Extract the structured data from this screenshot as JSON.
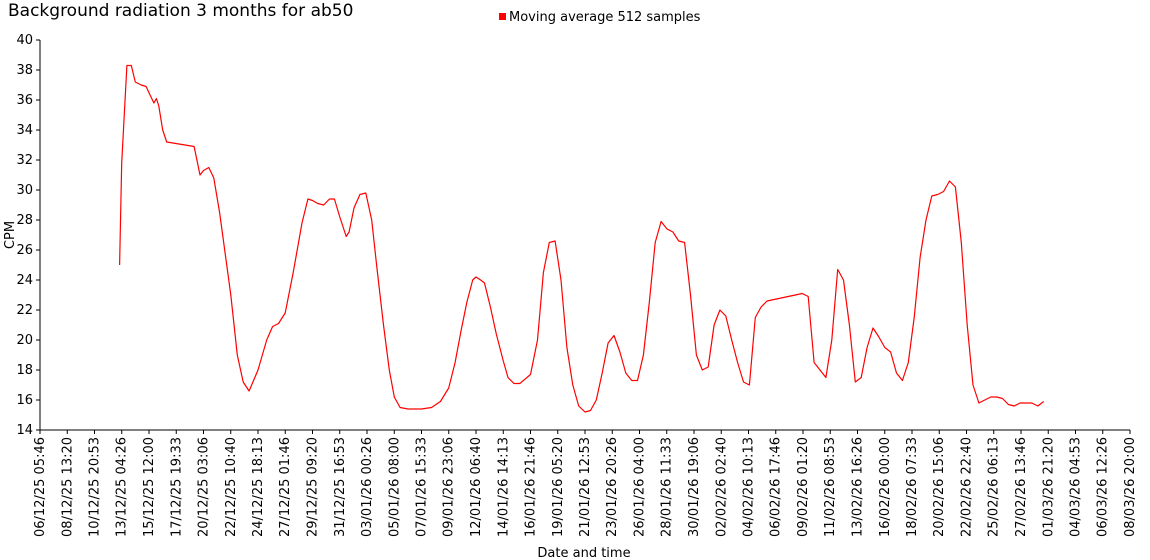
{
  "chart_data": {
    "type": "line",
    "title": "Background radiation 3 months for ab50",
    "xlabel": "Date and time",
    "ylabel": "CPM",
    "ylim": [
      14,
      40
    ],
    "yticks": [
      14,
      16,
      18,
      20,
      22,
      24,
      26,
      28,
      30,
      32,
      34,
      36,
      38,
      40
    ],
    "grid": false,
    "legend_position": "top",
    "x_tick_labels": [
      "06/12/25 05:46",
      "08/12/25 13:20",
      "10/12/25 20:53",
      "13/12/25 04:26",
      "15/12/25 12:00",
      "17/12/25 19:33",
      "20/12/25 03:06",
      "22/12/25 10:40",
      "24/12/25 18:13",
      "27/12/25 01:46",
      "29/12/25 09:20",
      "31/12/25 16:53",
      "03/01/26 00:26",
      "05/01/26 08:00",
      "07/01/26 15:33",
      "09/01/26 23:06",
      "12/01/26 06:40",
      "14/01/26 14:13",
      "16/01/26 21:46",
      "19/01/26 05:20",
      "21/01/26 12:53",
      "23/01/26 20:26",
      "26/01/26 04:00",
      "28/01/26 11:33",
      "30/01/26 19:06",
      "02/02/26 02:40",
      "04/02/26 10:13",
      "06/02/26 17:46",
      "09/02/26 01:20",
      "11/02/26 08:53",
      "13/02/26 16:26",
      "16/02/26 00:00",
      "18/02/26 07:33",
      "20/02/26 15:06",
      "22/02/26 22:40",
      "25/02/26 06:13",
      "27/02/26 13:46",
      "01/03/26 21:20",
      "04/03/26 04:53",
      "06/03/26 12:26",
      "08/03/26 20:00"
    ],
    "series": [
      {
        "name": "Moving average 512 samples",
        "color": "#ff0000",
        "points": [
          [
            "13/12/25 00:00",
            25.0
          ],
          [
            "13/12/25 04:26",
            31.8
          ],
          [
            "13/12/25 15:00",
            38.3
          ],
          [
            "14/12/25 00:00",
            38.3
          ],
          [
            "14/12/25 08:00",
            37.2
          ],
          [
            "14/12/25 20:00",
            37.0
          ],
          [
            "15/12/25 06:00",
            36.9
          ],
          [
            "15/12/25 16:00",
            36.2
          ],
          [
            "15/12/25 22:00",
            35.8
          ],
          [
            "16/12/25 03:00",
            36.1
          ],
          [
            "16/12/25 08:00",
            35.6
          ],
          [
            "16/12/25 16:00",
            34.0
          ],
          [
            "17/12/25 00:00",
            33.2
          ],
          [
            "19/12/25 08:00",
            32.9
          ],
          [
            "19/12/25 20:00",
            31.0
          ],
          [
            "20/12/25 03:06",
            31.3
          ],
          [
            "20/12/25 14:00",
            31.5
          ],
          [
            "21/12/25 00:00",
            30.8
          ],
          [
            "21/12/25 12:00",
            28.5
          ],
          [
            "22/12/25 10:40",
            23.0
          ],
          [
            "23/12/25 00:00",
            19.0
          ],
          [
            "23/12/25 12:00",
            17.2
          ],
          [
            "24/12/25 00:00",
            16.6
          ],
          [
            "24/12/25 18:13",
            18.0
          ],
          [
            "25/12/25 12:00",
            20.0
          ],
          [
            "26/12/25 00:00",
            20.9
          ],
          [
            "26/12/25 12:00",
            21.1
          ],
          [
            "27/12/25 01:46",
            21.8
          ],
          [
            "27/12/25 18:00",
            24.5
          ],
          [
            "28/12/25 12:00",
            27.8
          ],
          [
            "29/12/25 00:00",
            29.4
          ],
          [
            "29/12/25 09:20",
            29.3
          ],
          [
            "29/12/25 20:00",
            29.1
          ],
          [
            "30/12/25 08:00",
            29.0
          ],
          [
            "30/12/25 20:00",
            29.4
          ],
          [
            "31/12/25 06:00",
            29.4
          ],
          [
            "31/12/25 16:53",
            28.2
          ],
          [
            "01/01/26 06:00",
            26.9
          ],
          [
            "01/01/26 12:00",
            27.2
          ],
          [
            "01/01/26 22:00",
            28.8
          ],
          [
            "02/01/26 10:00",
            29.7
          ],
          [
            "02/01/26 22:00",
            29.8
          ],
          [
            "03/01/26 10:00",
            28.0
          ],
          [
            "03/01/26 20:00",
            25.0
          ],
          [
            "04/01/26 10:00",
            21.0
          ],
          [
            "04/01/26 22:00",
            18.0
          ],
          [
            "05/01/26 08:00",
            16.2
          ],
          [
            "05/01/26 20:00",
            15.5
          ],
          [
            "06/01/26 12:00",
            15.4
          ],
          [
            "07/01/26 15:33",
            15.4
          ],
          [
            "08/01/26 12:00",
            15.5
          ],
          [
            "09/01/26 06:00",
            15.9
          ],
          [
            "09/01/26 23:06",
            16.8
          ],
          [
            "10/01/26 12:00",
            18.5
          ],
          [
            "11/01/26 00:00",
            20.6
          ],
          [
            "11/01/26 12:00",
            22.5
          ],
          [
            "12/01/26 00:00",
            24.0
          ],
          [
            "12/01/26 06:40",
            24.2
          ],
          [
            "12/01/26 16:00",
            24.0
          ],
          [
            "13/01/26 00:00",
            23.8
          ],
          [
            "13/01/26 12:00",
            22.2
          ],
          [
            "14/01/26 00:00",
            20.4
          ],
          [
            "14/01/26 14:13",
            18.6
          ],
          [
            "15/01/26 00:00",
            17.5
          ],
          [
            "15/01/26 12:00",
            17.1
          ],
          [
            "16/01/26 00:00",
            17.1
          ],
          [
            "16/01/26 21:46",
            17.7
          ],
          [
            "17/01/26 12:00",
            20.0
          ],
          [
            "18/01/26 00:00",
            24.5
          ],
          [
            "18/01/26 12:00",
            26.5
          ],
          [
            "19/01/26 00:00",
            26.6
          ],
          [
            "19/01/26 12:00",
            24.0
          ],
          [
            "20/01/26 00:00",
            19.5
          ],
          [
            "20/01/26 12:00",
            17.0
          ],
          [
            "21/01/26 00:00",
            15.6
          ],
          [
            "21/01/26 12:53",
            15.2
          ],
          [
            "22/01/26 00:00",
            15.3
          ],
          [
            "22/01/26 12:00",
            16.0
          ],
          [
            "23/01/26 00:00",
            17.8
          ],
          [
            "23/01/26 12:00",
            19.8
          ],
          [
            "24/01/26 00:00",
            20.3
          ],
          [
            "24/01/26 12:00",
            19.2
          ],
          [
            "25/01/26 00:00",
            17.8
          ],
          [
            "25/01/26 12:00",
            17.3
          ],
          [
            "26/01/26 00:00",
            17.3
          ],
          [
            "26/01/26 12:00",
            19.0
          ],
          [
            "27/01/26 00:00",
            22.5
          ],
          [
            "27/01/26 12:00",
            26.5
          ],
          [
            "28/01/26 00:00",
            27.9
          ],
          [
            "28/01/26 12:00",
            27.4
          ],
          [
            "29/01/26 00:00",
            27.2
          ],
          [
            "29/01/26 12:00",
            26.6
          ],
          [
            "30/01/26 00:00",
            26.5
          ],
          [
            "30/01/26 12:00",
            23.0
          ],
          [
            "31/01/26 00:00",
            19.0
          ],
          [
            "31/01/26 12:00",
            18.0
          ],
          [
            "01/02/26 00:00",
            18.2
          ],
          [
            "01/02/26 12:00",
            21.0
          ],
          [
            "02/02/26 00:00",
            22.0
          ],
          [
            "02/02/26 12:00",
            21.6
          ],
          [
            "03/02/26 00:00",
            20.0
          ],
          [
            "03/02/26 12:00",
            18.5
          ],
          [
            "04/02/26 00:00",
            17.2
          ],
          [
            "04/02/26 12:00",
            17.0
          ],
          [
            "05/02/26 00:00",
            21.5
          ],
          [
            "05/02/26 12:00",
            22.2
          ],
          [
            "06/02/26 00:00",
            22.6
          ],
          [
            "09/02/26 00:00",
            23.1
          ],
          [
            "09/02/26 12:00",
            22.9
          ],
          [
            "10/02/26 00:00",
            18.5
          ],
          [
            "10/02/26 12:00",
            18.0
          ],
          [
            "11/02/26 00:00",
            17.5
          ],
          [
            "11/02/26 12:00",
            20.0
          ],
          [
            "12/02/26 00:00",
            24.7
          ],
          [
            "12/02/26 12:00",
            24.0
          ],
          [
            "13/02/26 00:00",
            21.0
          ],
          [
            "13/02/26 12:00",
            17.2
          ],
          [
            "14/02/26 00:00",
            17.5
          ],
          [
            "14/02/26 12:00",
            19.5
          ],
          [
            "15/02/26 00:00",
            20.8
          ],
          [
            "15/02/26 12:00",
            20.2
          ],
          [
            "16/02/26 00:00",
            19.5
          ],
          [
            "16/02/26 12:00",
            19.2
          ],
          [
            "17/02/26 00:00",
            17.8
          ],
          [
            "17/02/26 12:00",
            17.3
          ],
          [
            "18/02/26 00:00",
            18.5
          ],
          [
            "18/02/26 12:00",
            21.5
          ],
          [
            "19/02/26 00:00",
            25.5
          ],
          [
            "19/02/26 12:00",
            28.0
          ],
          [
            "20/02/26 00:00",
            29.6
          ],
          [
            "20/02/26 12:00",
            29.7
          ],
          [
            "21/02/26 00:00",
            29.9
          ],
          [
            "21/02/26 12:00",
            30.6
          ],
          [
            "22/02/26 00:00",
            30.2
          ],
          [
            "22/02/26 12:00",
            26.5
          ],
          [
            "23/02/26 00:00",
            21.0
          ],
          [
            "23/02/26 12:00",
            17.0
          ],
          [
            "24/02/26 00:00",
            15.8
          ],
          [
            "24/02/26 12:00",
            16.0
          ],
          [
            "25/02/26 00:00",
            16.2
          ],
          [
            "25/02/26 12:00",
            16.2
          ],
          [
            "26/02/26 00:00",
            16.1
          ],
          [
            "26/02/26 12:00",
            15.7
          ],
          [
            "27/02/26 00:00",
            15.6
          ],
          [
            "27/02/26 12:00",
            15.8
          ],
          [
            "28/02/26 00:00",
            15.8
          ],
          [
            "28/02/26 12:00",
            15.8
          ],
          [
            "01/03/26 00:00",
            15.6
          ],
          [
            "01/03/26 12:00",
            15.9
          ]
        ]
      }
    ]
  }
}
